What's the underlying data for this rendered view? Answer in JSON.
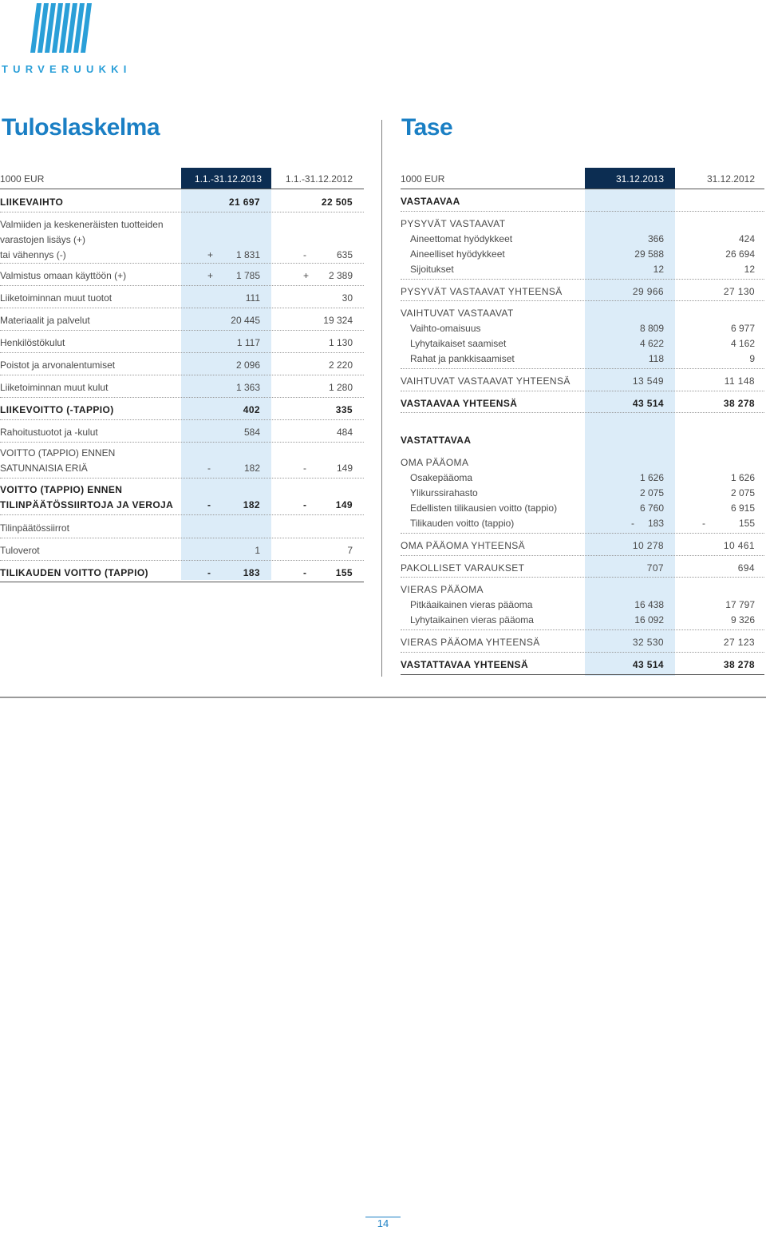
{
  "logo": {
    "name": "TURVERUUKKI"
  },
  "left": {
    "title": "Tuloslaskelma",
    "unit": "1000 EUR",
    "col1": "1.1.-31.12.2013",
    "col2": "1.1.-31.12.2012",
    "rows": [
      {
        "label": "LIIKEVAIHTO",
        "v1": "21 697",
        "v2": "22 505",
        "bold": true
      },
      {
        "label": "Valmiiden ja keskeneräisten tuotteiden",
        "line2": "varastojen lisäys (+)",
        "line3": "tai vähennys (-)",
        "s1": "+",
        "v1": "1 831",
        "s2": "-",
        "v2": "635"
      },
      {
        "label": "Valmistus omaan käyttöön (+)",
        "s1": "+",
        "v1": "1 785",
        "s2": "+",
        "v2": "2 389"
      },
      {
        "label": "Liiketoiminnan muut tuotot",
        "v1": "111",
        "v2": "30"
      },
      {
        "label": "Materiaalit ja palvelut",
        "v1": "20 445",
        "v2": "19 324"
      },
      {
        "label": "Henkilöstökulut",
        "v1": "1 117",
        "v2": "1 130"
      },
      {
        "label": "Poistot ja arvonalentumiset",
        "v1": "2 096",
        "v2": "2 220"
      },
      {
        "label": "Liiketoiminnan muut kulut",
        "v1": "1 363",
        "v2": "1 280"
      },
      {
        "label": "LIIKEVOITTO (-TAPPIO)",
        "v1": "402",
        "v2": "335",
        "bold": true
      },
      {
        "label": "Rahoitustuotot ja -kulut",
        "v1": "584",
        "v2": "484"
      },
      {
        "label": "VOITTO (TAPPIO) ENNEN",
        "line2": "SATUNNAISIA ERIÄ",
        "s1": "-",
        "v1": "182",
        "s2": "-",
        "v2": "149"
      },
      {
        "label": "VOITTO (TAPPIO) ENNEN",
        "line2": "TILINPÄÄTÖSSIIRTOJA JA VEROJA",
        "s1": "-",
        "v1": "182",
        "s2": "-",
        "v2": "149",
        "bold": true
      },
      {
        "label": "Tilinpäätössiirrot",
        "v1": "",
        "v2": ""
      },
      {
        "label": "Tuloverot",
        "v1": "1",
        "v2": "7"
      },
      {
        "label": "TILIKAUDEN VOITTO (TAPPIO)",
        "s1": "-",
        "v1": "183",
        "s2": "-",
        "v2": "155",
        "bold": true
      }
    ]
  },
  "right": {
    "title": "Tase",
    "unit": "1000 EUR",
    "col1": "31.12.2013",
    "col2": "31.12.2012",
    "rows": [
      {
        "label": "VASTAAVAA",
        "bold": true
      },
      {
        "label": "PYSYVÄT VASTAAVAT"
      },
      {
        "label": "Aineettomat hyödykkeet",
        "v1": "366",
        "v2": "424",
        "indent": true
      },
      {
        "label": "Aineelliset hyödykkeet",
        "v1": "29 588",
        "v2": "26 694",
        "indent": true
      },
      {
        "label": "Sijoitukset",
        "v1": "12",
        "v2": "12",
        "indent": true
      },
      {
        "label": "PYSYVÄT VASTAAVAT YHTEENSÄ",
        "v1": "29 966",
        "v2": "27 130"
      },
      {
        "label": "VAIHTUVAT VASTAAVAT"
      },
      {
        "label": "Vaihto-omaisuus",
        "v1": "8 809",
        "v2": "6 977",
        "indent": true
      },
      {
        "label": "Lyhytaikaiset saamiset",
        "v1": "4 622",
        "v2": "4 162",
        "indent": true
      },
      {
        "label": "Rahat ja pankkisaamiset",
        "v1": "118",
        "v2": "9",
        "indent": true
      },
      {
        "label": "VAIHTUVAT VASTAAVAT YHTEENSÄ",
        "v1": "13 549",
        "v2": "11 148"
      },
      {
        "label": "VASTAAVAA YHTEENSÄ",
        "v1": "43 514",
        "v2": "38 278",
        "bold": true
      },
      {
        "label": "VASTATTAVAA",
        "bold": true
      },
      {
        "label": "OMA PÄÄOMA"
      },
      {
        "label": "Osakepääoma",
        "v1": "1 626",
        "v2": "1 626",
        "indent": true
      },
      {
        "label": "Ylikurssirahasto",
        "v1": "2 075",
        "v2": "2 075",
        "indent": true
      },
      {
        "label": "Edellisten tilikausien voitto (tappio)",
        "v1": "6 760",
        "v2": "6 915",
        "indent": true
      },
      {
        "label": "Tilikauden voitto (tappio)",
        "s1": "-",
        "v1": "183",
        "s2": "-",
        "v2": "155",
        "indent": true
      },
      {
        "label": "OMA PÄÄOMA YHTEENSÄ",
        "v1": "10 278",
        "v2": "10 461"
      },
      {
        "label": "PAKOLLISET VARAUKSET",
        "v1": "707",
        "v2": "694"
      },
      {
        "label": "VIERAS PÄÄOMA"
      },
      {
        "label": "Pitkäaikainen vieras pääoma",
        "v1": "16 438",
        "v2": "17 797",
        "indent": true
      },
      {
        "label": "Lyhytaikainen vieras pääoma",
        "v1": "16 092",
        "v2": "9 326",
        "indent": true
      },
      {
        "label": "VIERAS PÄÄOMA YHTEENSÄ",
        "v1": "32 530",
        "v2": "27 123"
      },
      {
        "label": "VASTATTAVAA YHTEENSÄ",
        "v1": "43 514",
        "v2": "38 278",
        "bold": true
      }
    ]
  },
  "footer": {
    "page": "14"
  },
  "colors": {
    "accent": "#1a7fc4",
    "header": "#0c2d52",
    "column": "#dcecf8"
  }
}
